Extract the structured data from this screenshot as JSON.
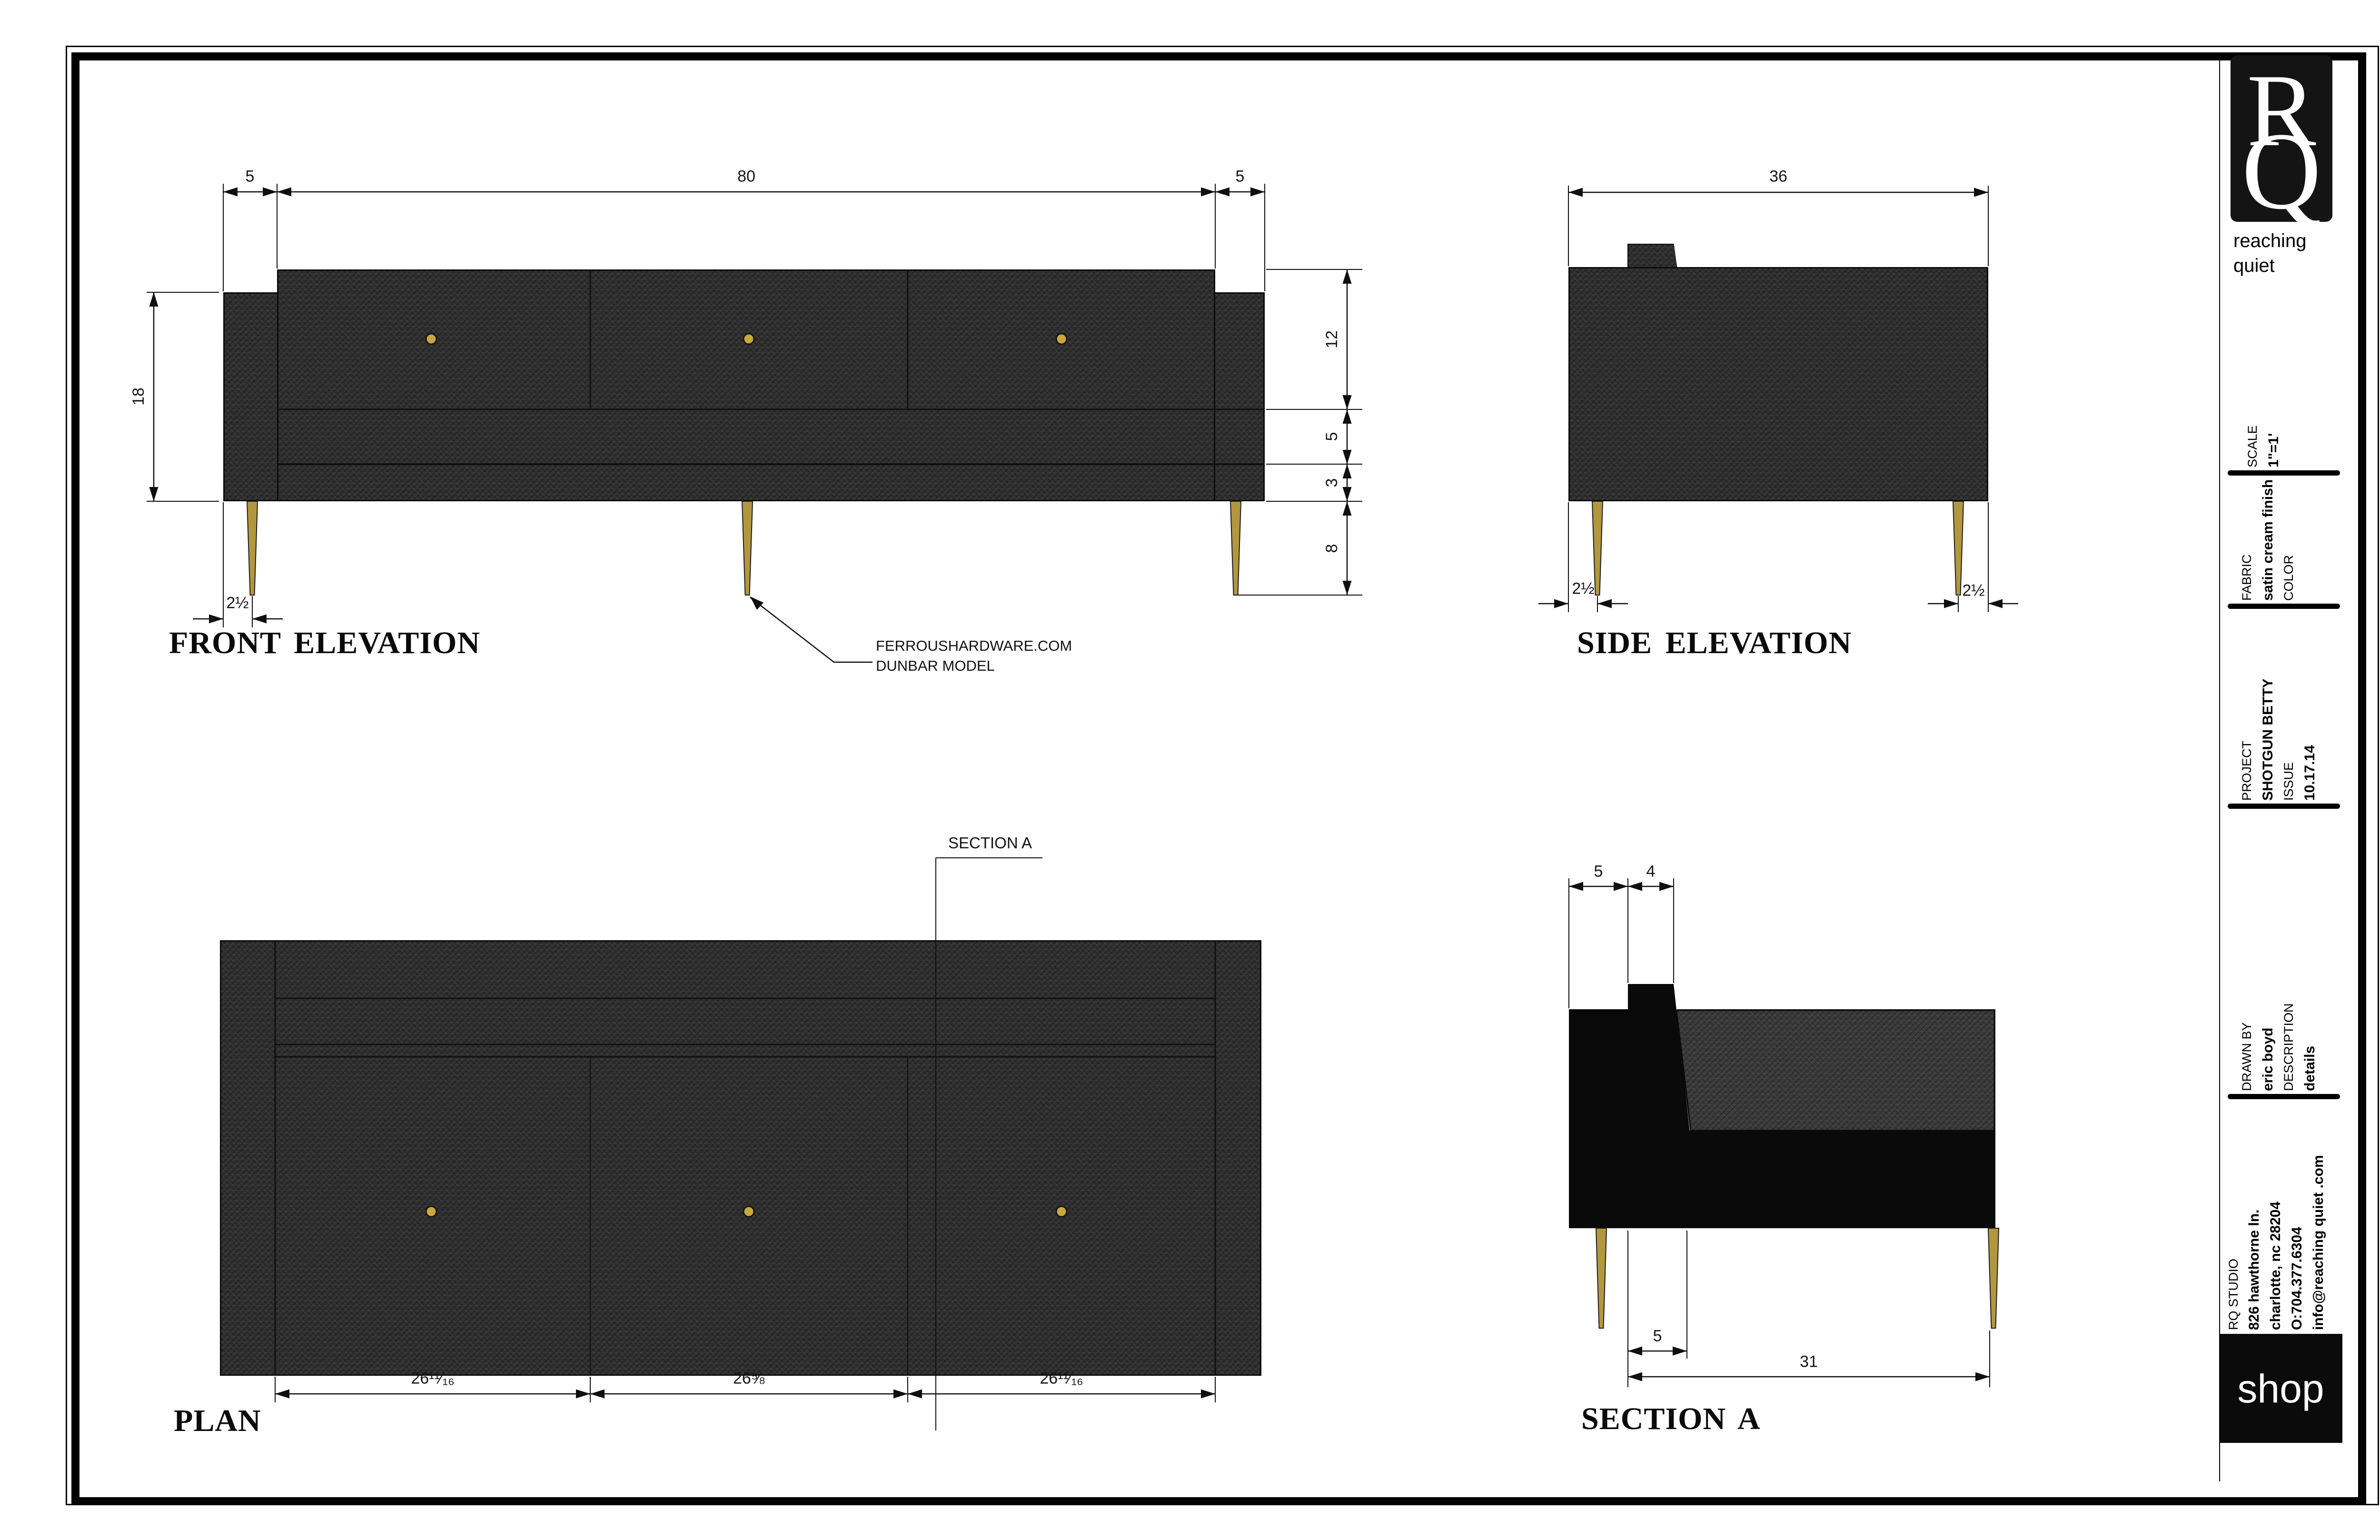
{
  "brand": {
    "logo_letter_top": "R",
    "logo_letter_bottom": "Q",
    "name_line1": "reaching",
    "name_line2": "quiet",
    "shop_label": "shop"
  },
  "title_block": {
    "scale_label": "SCALE",
    "scale_value": "1\"=1'",
    "fabric_label": "FABRIC",
    "fabric_value": "satin cream finish",
    "color_label": "COLOR",
    "project_label": "PROJECT",
    "project_value": "SHOTGUN BETTY",
    "issue_label": "ISSUE",
    "issue_value": "10.17.14",
    "drawnby_label": "DRAWN BY",
    "drawnby_value": "eric boyd",
    "description_label": "DESCRIPTION",
    "description_value": "details",
    "studio_name": "RQ STUDIO",
    "studio_address1": "826 hawthorne ln.",
    "studio_address2": "charlotte, nc 28204",
    "studio_phone": "O:704.377.6304",
    "studio_email": "info@reaching quiet .com"
  },
  "views": {
    "front_elevation": {
      "title": "FRONT ELEVATION",
      "dim_top_left": "5",
      "dim_top_center": "80",
      "dim_top_right": "5",
      "dim_right_1": "12",
      "dim_right_2": "5",
      "dim_right_3": "3",
      "dim_right_4": "8",
      "dim_height": "18",
      "dim_leg_inset": "2½"
    },
    "side_elevation": {
      "title": "SIDE ELEVATION",
      "dim_width": "36",
      "dim_leg_inset_left": "2½",
      "dim_leg_inset_right": "2½"
    },
    "plan": {
      "title": "PLAN",
      "section_cut_label": "SECTION A",
      "dim_door_1": "26¹¹⁄₁₆",
      "dim_door_2": "26⅝",
      "dim_door_3": "26¹¹⁄₁₆"
    },
    "section_a": {
      "title": "SECTION A",
      "dim_back_inset": "5",
      "dim_backrest_width": "4",
      "dim_bottom_inset": "5",
      "dim_seat_depth": "31"
    }
  },
  "annotation": {
    "line1": "FERROUSHARDWARE.COM",
    "line2": "DUNBAR MODEL"
  },
  "colors": {
    "body_charcoal": "#2d2d2d",
    "leg_gold": "#b2973e",
    "knob_gold": "#c9a83e",
    "ink": "#111111"
  }
}
